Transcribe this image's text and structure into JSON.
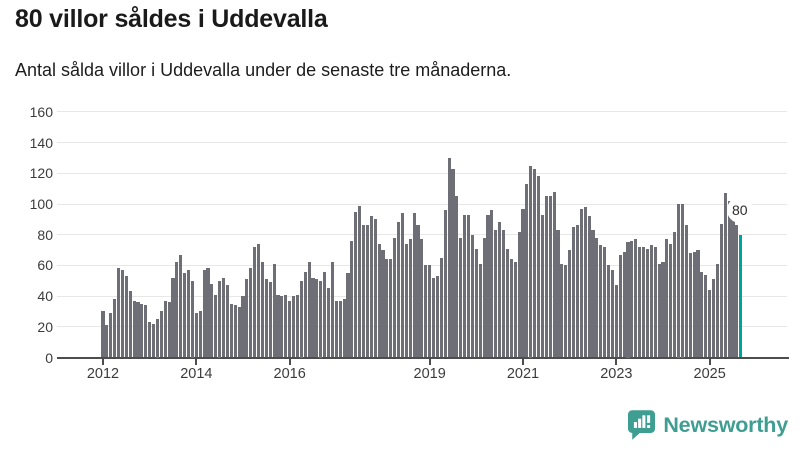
{
  "header": {
    "title": "80 villor såldes i Uddevalla",
    "subtitle": "Antal sålda villor i Uddevalla under de senaste tre månaderna."
  },
  "chart_data": {
    "type": "bar",
    "title": "80 villor såldes i Uddevalla",
    "subtitle": "Antal sålda villor i Uddevalla under de senaste tre månaderna.",
    "xlabel": "",
    "ylabel": "",
    "x_start": "2012-01",
    "frequency": "monthly",
    "ylim": [
      0,
      160
    ],
    "grid": true,
    "y_ticks": [
      0,
      20,
      40,
      60,
      80,
      100,
      120,
      140,
      160
    ],
    "x_tick_labels": [
      "2012",
      "2014",
      "2016",
      "2019",
      "2021",
      "2023",
      "2025"
    ],
    "x_tick_years": [
      2012,
      2014,
      2016,
      2019,
      2021,
      2023,
      2025
    ],
    "series": [
      {
        "name": "Antal sålda villor, rullande tre månader",
        "values": [
          30,
          21,
          29,
          38,
          58,
          57,
          53,
          43,
          37,
          36,
          35,
          34,
          23,
          22,
          25,
          30,
          37,
          36,
          52,
          62,
          67,
          55,
          57,
          50,
          29,
          30,
          57,
          58,
          48,
          41,
          50,
          52,
          47,
          35,
          34,
          33,
          40,
          51,
          58,
          72,
          74,
          62,
          51,
          49,
          61,
          41,
          40,
          41,
          37,
          40,
          41,
          50,
          56,
          62,
          52,
          51,
          50,
          56,
          45,
          62,
          37,
          37,
          38,
          55,
          76,
          95,
          99,
          86,
          86,
          92,
          90,
          74,
          70,
          64,
          64,
          78,
          88,
          94,
          74,
          77,
          94,
          86,
          77,
          60,
          60,
          52,
          53,
          65,
          96,
          130,
          123,
          105,
          78,
          93,
          93,
          80,
          71,
          61,
          78,
          93,
          96,
          83,
          88,
          83,
          71,
          64,
          62,
          82,
          97,
          113,
          125,
          123,
          118,
          93,
          105,
          105,
          108,
          83,
          61,
          60,
          70,
          85,
          86,
          97,
          98,
          92,
          83,
          78,
          73,
          72,
          60,
          57,
          47,
          67,
          69,
          75,
          76,
          77,
          72,
          72,
          71,
          73,
          72,
          61,
          62,
          77,
          74,
          82,
          100,
          100,
          86,
          68,
          69,
          70,
          56,
          54,
          44,
          51,
          61,
          87,
          107,
          102,
          90,
          86,
          80
        ]
      }
    ],
    "highlight_last": true,
    "last_value_label": "80",
    "bar_color": "#6e6e77",
    "highlight_color": "#00a39b",
    "gridline_color": "#e7e7e7",
    "axis_color": "#4d4d4d",
    "legend_position": "none"
  },
  "footer": {
    "brand": "Newsworthy",
    "brand_color": "#3f9e92",
    "logo_icon": "bar-chart-speech-bubble-icon"
  }
}
